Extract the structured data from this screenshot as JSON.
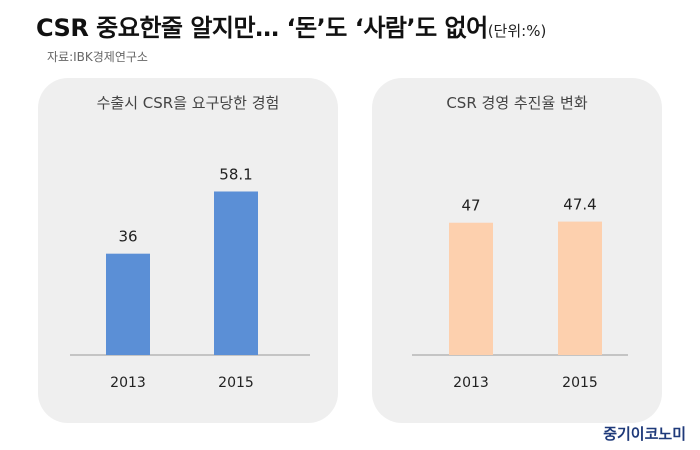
{
  "title": "CSR 중요한줄 알지만… ‘돈’도 ‘사람’도 없어",
  "unit": "(단위:%)",
  "source": "자료:IBK경제연구소",
  "brand": "중기이코노미",
  "colors": {
    "left_bar": "#5b8fd6",
    "right_bar": "#fdd0ae",
    "panel_bg": "#efefef",
    "axis": "#999999"
  },
  "chart_data": [
    {
      "type": "bar",
      "title": "수출시 CSR을 요구당한 경험",
      "categories": [
        "2013",
        "2015"
      ],
      "values": [
        36,
        58.1
      ],
      "value_labels": [
        "36",
        "58.1"
      ],
      "ylim": [
        0,
        70
      ],
      "grid": false,
      "legend": "none"
    },
    {
      "type": "bar",
      "title": "CSR 경영 추진율 변화",
      "categories": [
        "2013",
        "2015"
      ],
      "values": [
        47,
        47.4
      ],
      "value_labels": [
        "47",
        "47.4"
      ],
      "ylim": [
        0,
        70
      ],
      "grid": false,
      "legend": "none"
    }
  ]
}
